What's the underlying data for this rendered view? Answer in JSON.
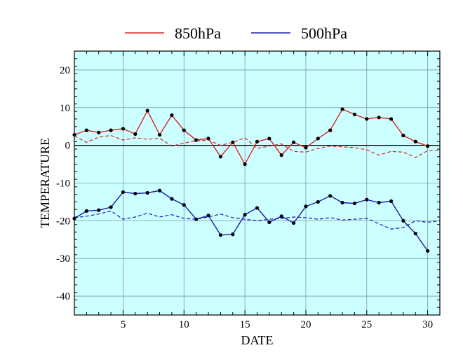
{
  "chart_data": {
    "type": "line",
    "xlabel": "DATE",
    "ylabel": "TEMPERATURE",
    "xlim": [
      1,
      31
    ],
    "ylim": [
      -45,
      25
    ],
    "xticks": [
      5,
      10,
      15,
      20,
      25,
      30
    ],
    "yticks": [
      -40,
      -30,
      -20,
      -10,
      0,
      10,
      20
    ],
    "x_tick_labels": [
      "5",
      "10",
      "15",
      "20",
      "25",
      "30"
    ],
    "y_tick_labels": [
      "-40",
      "-30",
      "-20",
      "-10",
      "0",
      "10",
      "20"
    ],
    "grid": true,
    "zero_line": true,
    "legend_position": "top-center",
    "plot_background": "#ccffff",
    "series": [
      {
        "name": "850hPa",
        "color": "#dd2222",
        "style": "solid",
        "markers": true,
        "in_legend": true,
        "x": [
          1,
          2,
          3,
          4,
          5,
          6,
          7,
          8,
          9,
          10,
          11,
          12,
          13,
          14,
          15,
          16,
          17,
          18,
          19,
          20,
          21,
          22,
          23,
          24,
          25,
          26,
          27,
          28,
          29,
          30
        ],
        "values": [
          2.8,
          4.0,
          3.4,
          4.0,
          4.4,
          3.0,
          9.2,
          2.8,
          8.0,
          4.0,
          1.4,
          1.8,
          -3.0,
          0.8,
          -5.0,
          1.0,
          1.8,
          -2.6,
          0.8,
          -0.6,
          1.8,
          4.0,
          9.6,
          8.2,
          7.0,
          7.4,
          7.0,
          2.6,
          1.0,
          -0.2
        ]
      },
      {
        "name": "500hPa",
        "color": "#1a1ab0",
        "style": "solid",
        "markers": true,
        "in_legend": true,
        "x": [
          1,
          2,
          3,
          4,
          5,
          6,
          7,
          8,
          9,
          10,
          11,
          12,
          13,
          14,
          15,
          16,
          17,
          18,
          19,
          20,
          21,
          22,
          23,
          24,
          25,
          26,
          27,
          28,
          29,
          30
        ],
        "values": [
          -19.4,
          -17.4,
          -17.2,
          -16.4,
          -12.4,
          -12.8,
          -12.6,
          -12.0,
          -14.2,
          -15.8,
          -19.6,
          -18.6,
          -23.8,
          -23.6,
          -18.4,
          -16.6,
          -20.4,
          -18.8,
          -20.6,
          -16.2,
          -15.0,
          -13.4,
          -15.2,
          -15.4,
          -14.4,
          -15.2,
          -14.8,
          -20.0,
          -23.4,
          -28.0
        ]
      },
      {
        "name": "",
        "color": "#dd2222",
        "style": "dashed",
        "markers": false,
        "in_legend": false,
        "x": [
          1,
          2,
          3,
          4,
          5,
          6,
          7,
          8,
          9,
          10,
          11,
          12,
          13,
          14,
          15,
          16,
          17,
          18,
          19,
          20,
          21,
          22,
          23,
          24,
          25,
          26,
          27,
          28,
          29,
          30,
          31
        ],
        "values": [
          2.5,
          0.8,
          2.2,
          2.6,
          1.4,
          2.0,
          1.6,
          1.9,
          -0.2,
          0.6,
          1.2,
          1.4,
          0.0,
          0.8,
          2.0,
          -0.8,
          -0.2,
          0.4,
          -1.6,
          -1.8,
          -0.8,
          -0.2,
          -0.4,
          -0.6,
          -1.2,
          -2.6,
          -1.6,
          -1.8,
          -3.2,
          -1.4,
          -1.4
        ]
      },
      {
        "name": "",
        "color": "#1a1ab0",
        "style": "dashed",
        "markers": false,
        "in_legend": false,
        "x": [
          1,
          2,
          3,
          4,
          5,
          6,
          7,
          8,
          9,
          10,
          11,
          12,
          13,
          14,
          15,
          16,
          17,
          18,
          19,
          20,
          21,
          22,
          23,
          24,
          25,
          26,
          27,
          28,
          29,
          30,
          31
        ],
        "values": [
          -19.2,
          -18.8,
          -18.2,
          -17.4,
          -19.6,
          -19.0,
          -18.0,
          -19.0,
          -18.4,
          -19.4,
          -19.6,
          -19.0,
          -18.2,
          -19.2,
          -19.6,
          -20.0,
          -19.6,
          -19.4,
          -19.0,
          -19.2,
          -19.6,
          -19.2,
          -19.8,
          -19.6,
          -19.4,
          -20.8,
          -22.2,
          -21.8,
          -20.0,
          -20.4,
          -20.0
        ]
      }
    ]
  }
}
